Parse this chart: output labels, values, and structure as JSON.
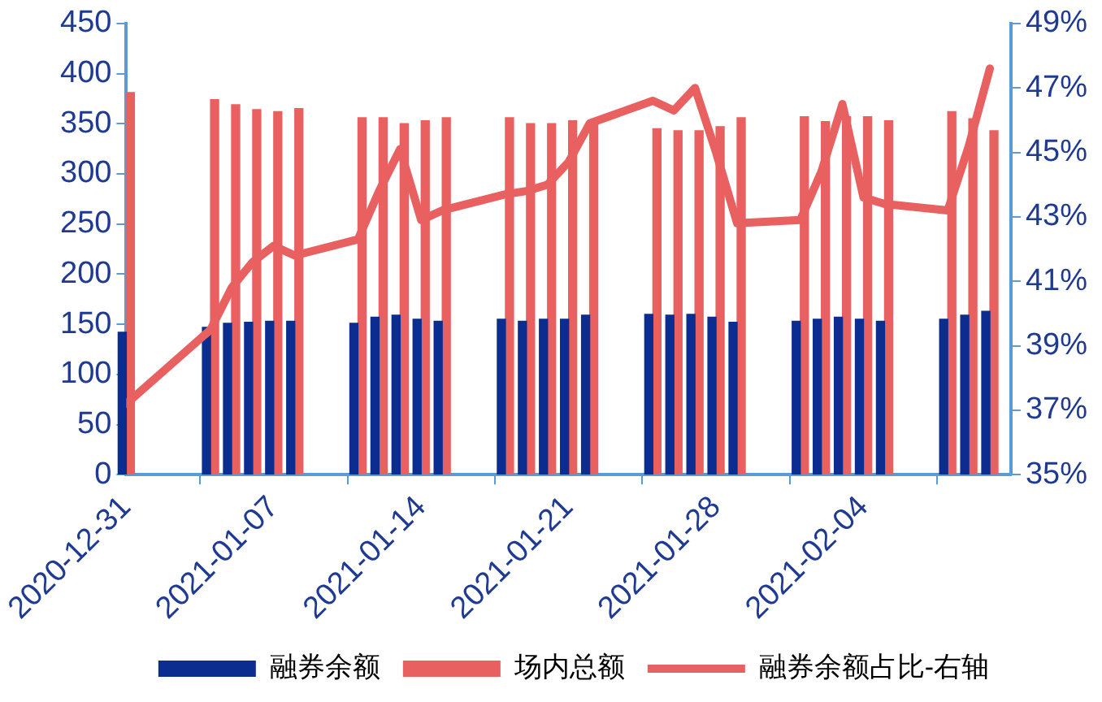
{
  "chart_data": {
    "type": "bar",
    "x": [
      "2020-12-31",
      "2021-01-04",
      "2021-01-05",
      "2021-01-06",
      "2021-01-07",
      "2021-01-08",
      "2021-01-11",
      "2021-01-12",
      "2021-01-13",
      "2021-01-14",
      "2021-01-15",
      "2021-01-18",
      "2021-01-19",
      "2021-01-20",
      "2021-01-21",
      "2021-01-22",
      "2021-01-25",
      "2021-01-26",
      "2021-01-27",
      "2021-01-28",
      "2021-01-29",
      "2021-02-01",
      "2021-02-02",
      "2021-02-03",
      "2021-02-04",
      "2021-02-05",
      "2021-02-08",
      "2021-02-09",
      "2021-02-10"
    ],
    "series": [
      {
        "name": "融券余额",
        "color": "#0b2d8f",
        "values": [
          142,
          147,
          151,
          152,
          153,
          153,
          151,
          157,
          159,
          155,
          153,
          155,
          153,
          155,
          155,
          159,
          160,
          159,
          160,
          157,
          152,
          153,
          155,
          157,
          155,
          153,
          155,
          159,
          163
        ]
      },
      {
        "name": "场内总额",
        "color": "#e86060",
        "values": [
          381,
          374,
          369,
          364,
          362,
          365,
          356,
          356,
          350,
          353,
          356,
          356,
          350,
          350,
          353,
          353,
          345,
          343,
          343,
          347,
          356,
          357,
          352,
          357,
          357,
          353,
          362,
          355,
          343
        ]
      },
      {
        "name": "融券余额占比-右轴",
        "type": "line",
        "axis": "y2",
        "color": "#e86060",
        "values": [
          37.2,
          39.5,
          40.8,
          41.6,
          42.1,
          41.8,
          42.3,
          43.8,
          45.1,
          42.9,
          43.2,
          43.7,
          43.8,
          44.0,
          44.7,
          45.9,
          46.6,
          46.3,
          47.0,
          45.0,
          42.8,
          42.9,
          44.4,
          46.5,
          43.6,
          43.4,
          43.2,
          45.2,
          47.6
        ]
      }
    ],
    "xlim": [
      "2020-12-31",
      "2021-02-11"
    ],
    "xticks": [
      "2020-12-31",
      "2021-01-07",
      "2021-01-14",
      "2021-01-21",
      "2021-01-28",
      "2021-02-04",
      {
        "value": "2021-02-11",
        "label": null
      }
    ],
    "ylim": [
      0,
      450
    ],
    "yticks": [
      0,
      50,
      100,
      150,
      200,
      250,
      300,
      350,
      400,
      450
    ],
    "y2lim": [
      35,
      49
    ],
    "y2ticks": [
      {
        "value": 35,
        "label": "35%"
      },
      {
        "value": 37,
        "label": "37%"
      },
      {
        "value": 39,
        "label": "39%"
      },
      {
        "value": 41,
        "label": "41%"
      },
      {
        "value": 43,
        "label": "43%"
      },
      {
        "value": 45,
        "label": "45%"
      },
      {
        "value": 47,
        "label": "47%"
      },
      {
        "value": 49,
        "label": "49%"
      }
    ],
    "grid": false,
    "legend": "bottom",
    "marker": "none",
    "line_style": "solid"
  }
}
